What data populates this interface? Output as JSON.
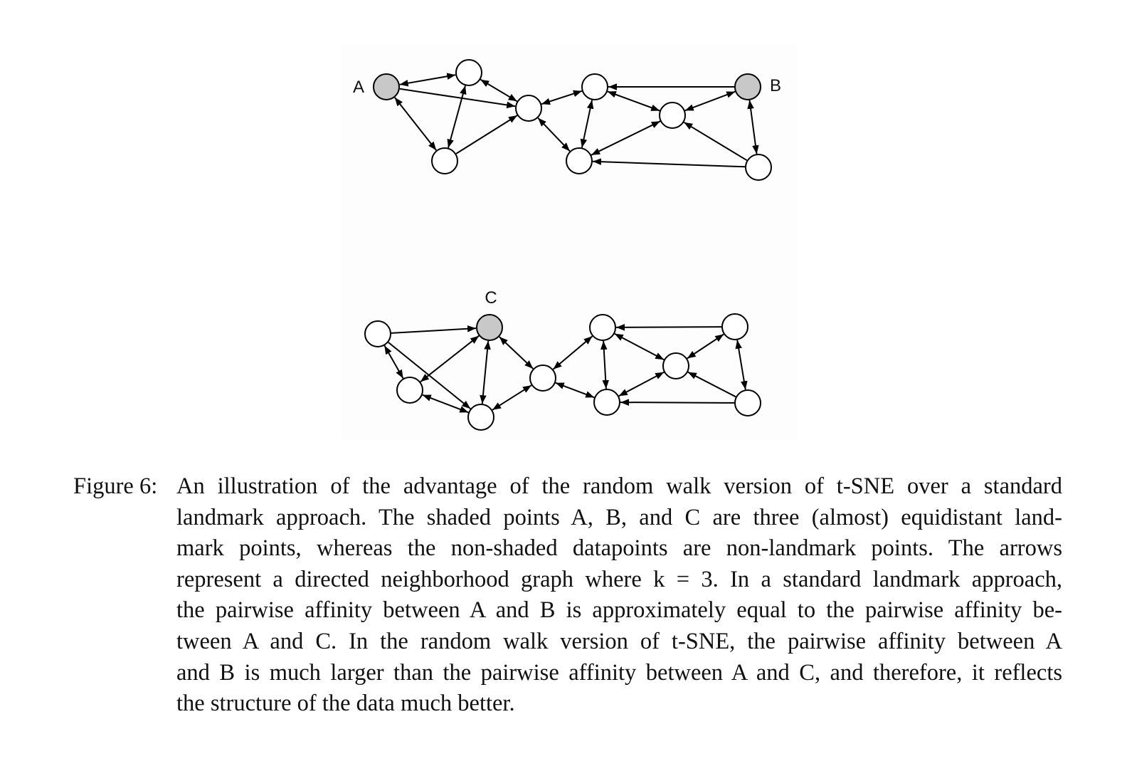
{
  "figure": {
    "top_graph": {
      "label_a": "A",
      "label_b": "B",
      "landmarks": [
        "A",
        "B"
      ]
    },
    "bottom_graph": {
      "label_c": "C",
      "landmarks": [
        "C"
      ]
    },
    "colors": {
      "landmark_fill": "#c8c8c8",
      "node_fill": "#ffffff",
      "stroke": "#000000"
    }
  },
  "caption": {
    "label": "Figure 6:",
    "lines": [
      "An illustration of the advantage of the random walk version of t-SNE over a standard",
      "landmark approach. The shaded points A, B, and C are three (almost) equidistant land-",
      "mark points, whereas the non-shaded datapoints are non-landmark points. The arrows",
      "represent a directed neighborhood graph where k = 3. In a standard landmark approach,",
      "the pairwise affinity between A and B is approximately equal to the pairwise affinity be-",
      "tween A and C. In the random walk version of t-SNE, the pairwise affinity between A",
      "and B is much larger than the pairwise affinity between A and C, and therefore, it reflects",
      "the structure of the data much better."
    ]
  }
}
